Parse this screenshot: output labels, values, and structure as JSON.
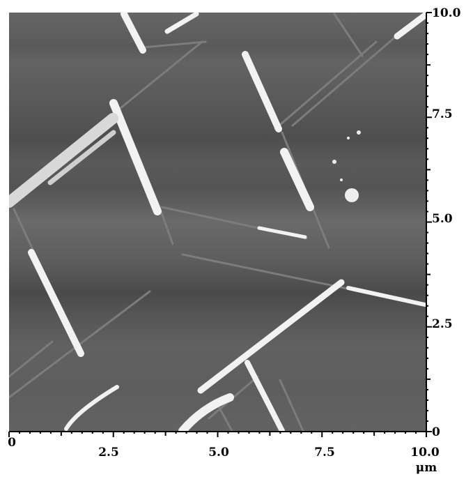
{
  "axes": {
    "x_ticks": [
      "0",
      "2.5",
      "5.0",
      "7.5",
      "10.0"
    ],
    "y_ticks": [
      "10.0",
      "7.5",
      "5.0",
      "2.5",
      "0"
    ],
    "x_unit": "μm"
  },
  "image": {
    "kind": "afm-topography",
    "range": [
      0,
      10.0
    ],
    "colors": {
      "background": "#5b5b5b",
      "features": "#f4f4f4",
      "axis": "#000000"
    }
  }
}
